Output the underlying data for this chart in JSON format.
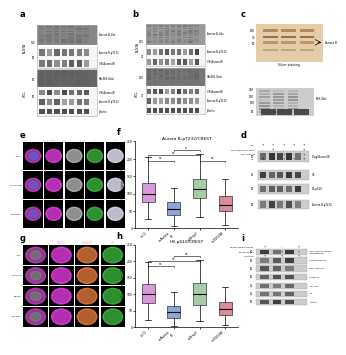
{
  "bg_color": "#ffffff",
  "panel_f_data": {
    "title": "Aurora B-pT232/CREST",
    "ylabel": "Relative Intensity (%)",
    "colors": [
      "#cc77cc",
      "#6688cc",
      "#88bb88",
      "#cc6677"
    ],
    "medians": [
      100,
      55,
      115,
      65
    ],
    "q1": [
      75,
      35,
      80,
      45
    ],
    "q3": [
      145,
      80,
      155,
      95
    ],
    "whisker_lo": [
      40,
      10,
      45,
      15
    ],
    "whisker_hi": [
      200,
      115,
      210,
      140
    ],
    "ylim": [
      0,
      250
    ],
    "yticks": [
      0,
      50,
      100,
      150,
      200,
      250
    ]
  },
  "panel_h_data": {
    "title": "H3-pS10/CREST",
    "ylabel": "Relative Intensity (%)",
    "colors": [
      "#cc77cc",
      "#6688cc",
      "#88bb88",
      "#cc6677"
    ],
    "medians": [
      100,
      45,
      100,
      55
    ],
    "q1": [
      70,
      25,
      65,
      35
    ],
    "q3": [
      135,
      70,
      135,
      85
    ],
    "whisker_lo": [
      30,
      5,
      25,
      10
    ],
    "whisker_hi": [
      195,
      105,
      200,
      120
    ],
    "ylim": [
      0,
      250
    ],
    "yticks": [
      0,
      50,
      100,
      150,
      200,
      250
    ]
  },
  "wb_white": "#f5f5f5",
  "wb_light_gray": "#cccccc",
  "wb_mid_gray": "#888888",
  "wb_dark": "#333333",
  "wb_black": "#111111",
  "silver_bg": "#d4aa70",
  "silver_inner": "#e8c88a"
}
